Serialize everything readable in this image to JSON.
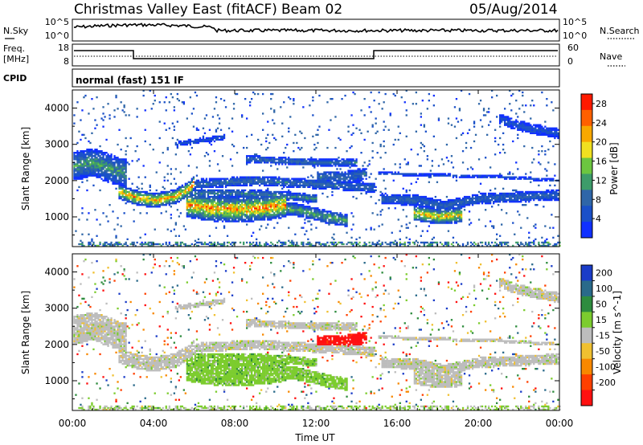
{
  "header": {
    "site": "Christmas Valley East (fitACF)",
    "beam": "Beam 02",
    "date": "05/Aug/2014"
  },
  "summary": {
    "left_labels": [
      "N.Sky",
      "Freq.",
      "[MHz]",
      "CPID"
    ],
    "right_labels": [
      "N.Search",
      "Nave"
    ],
    "noise_left_ticks": [
      "10^5",
      "10^0"
    ],
    "noise_right_ticks": [
      "10^5",
      "10^0"
    ],
    "freq_left_ticks": [
      "18",
      "8"
    ],
    "freq_right_ticks": [
      "60",
      "0"
    ],
    "cpid_text": "normal (fast) 151 IF"
  },
  "chart_data": [
    {
      "type": "heatmap",
      "panel": "power",
      "ylabel": "Slant Range [km]",
      "xlabel": "Time UT",
      "x_ticks": [
        "00:00",
        "04:00",
        "08:00",
        "12:00",
        "16:00",
        "20:00",
        "00:00"
      ],
      "y_ticks": [
        1000,
        2000,
        3000,
        4000
      ],
      "ylim": [
        180,
        4500
      ],
      "xlim_hours": [
        0,
        24
      ],
      "colorbar": {
        "label": "Power [dB]",
        "ticks": [
          4,
          8,
          12,
          16,
          20,
          24,
          28
        ],
        "range": [
          0,
          30
        ],
        "colors": [
          "#1030ff",
          "#1a50c8",
          "#2f66a8",
          "#3d9c6a",
          "#6cc640",
          "#f0e020",
          "#f8a800",
          "#ff6000",
          "#ff1a00"
        ]
      }
    },
    {
      "type": "heatmap",
      "panel": "velocity",
      "ylabel": "Slant Range [km]",
      "xlabel": "Time UT",
      "x_ticks": [
        "00:00",
        "04:00",
        "08:00",
        "12:00",
        "16:00",
        "20:00",
        "00:00"
      ],
      "y_ticks": [
        1000,
        2000,
        3000,
        4000
      ],
      "ylim": [
        180,
        4500
      ],
      "xlim_hours": [
        0,
        24
      ],
      "colorbar": {
        "label": "Velocity [m s^-1]",
        "ticks": [
          "200",
          "100",
          "50",
          "15",
          "-15",
          "-50",
          "-100",
          "-200"
        ],
        "colors": [
          "#1a3cc8",
          "#2a6a8a",
          "#2e8c3e",
          "#7ccc2e",
          "#bdbdbd",
          "#f0c030",
          "#f88800",
          "#ff4000",
          "#ff1010"
        ]
      }
    }
  ]
}
